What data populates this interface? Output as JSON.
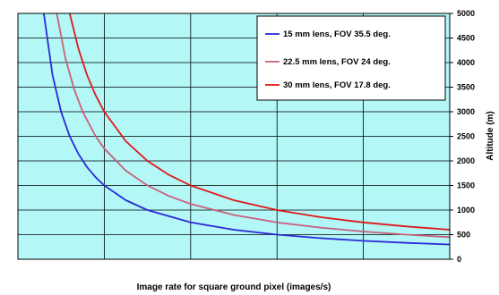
{
  "chart_data": {
    "type": "line",
    "title": "",
    "xlabel": "Image rate for square ground pixel (images/s)",
    "ylabel": "Altitude (m)",
    "ylim": [
      0,
      5000
    ],
    "yticks": [
      "0",
      "500",
      "1000",
      "1500",
      "2000",
      "2500",
      "3000",
      "3500",
      "4000",
      "4500",
      "5000"
    ],
    "xlim": [
      0,
      5
    ],
    "x_gridlines": [
      1,
      2,
      3,
      4
    ],
    "grid": true,
    "legend_position": "top-right",
    "background_color": "#b3f7f7",
    "series": [
      {
        "name": "15 mm lens, FOV 35.5 deg.",
        "color": "#2a2ad6",
        "points": [
          [
            0.3,
            5000
          ],
          [
            0.4,
            3750
          ],
          [
            0.5,
            3000
          ],
          [
            0.6,
            2500
          ],
          [
            0.7,
            2143
          ],
          [
            0.8,
            1875
          ],
          [
            0.9,
            1667
          ],
          [
            1.0,
            1500
          ],
          [
            1.25,
            1200
          ],
          [
            1.5,
            1000
          ],
          [
            2.0,
            750
          ],
          [
            2.5,
            600
          ],
          [
            3.0,
            500
          ],
          [
            3.5,
            429
          ],
          [
            4.0,
            375
          ],
          [
            4.5,
            333
          ],
          [
            5.0,
            300
          ]
        ]
      },
      {
        "name": "22.5 mm lens, FOV 24 deg.",
        "color": "#c8607a",
        "points": [
          [
            0.45,
            5000
          ],
          [
            0.55,
            4091
          ],
          [
            0.65,
            3462
          ],
          [
            0.75,
            3000
          ],
          [
            0.9,
            2500
          ],
          [
            1.0,
            2250
          ],
          [
            1.25,
            1800
          ],
          [
            1.5,
            1500
          ],
          [
            1.75,
            1286
          ],
          [
            2.0,
            1125
          ],
          [
            2.5,
            900
          ],
          [
            3.0,
            750
          ],
          [
            3.5,
            643
          ],
          [
            4.0,
            563
          ],
          [
            4.5,
            500
          ],
          [
            5.0,
            450
          ]
        ]
      },
      {
        "name": "30 mm lens, FOV 17.8 deg.",
        "color": "#e01818",
        "points": [
          [
            0.6,
            5000
          ],
          [
            0.7,
            4286
          ],
          [
            0.8,
            3750
          ],
          [
            0.9,
            3333
          ],
          [
            1.0,
            3000
          ],
          [
            1.25,
            2400
          ],
          [
            1.5,
            2000
          ],
          [
            1.75,
            1714
          ],
          [
            2.0,
            1500
          ],
          [
            2.5,
            1200
          ],
          [
            3.0,
            1000
          ],
          [
            3.5,
            857
          ],
          [
            4.0,
            750
          ],
          [
            4.5,
            667
          ],
          [
            5.0,
            600
          ]
        ]
      }
    ]
  }
}
